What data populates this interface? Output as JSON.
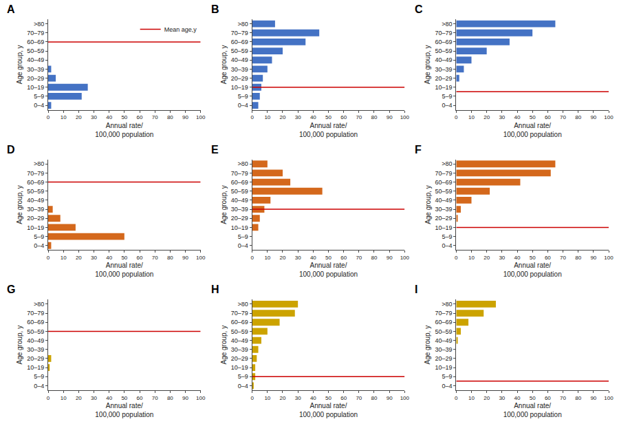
{
  "chart_data": [
    {
      "type": "bar",
      "title": "A",
      "orientation": "horizontal",
      "categories": [
        ">80",
        "70–79",
        "60–69",
        "50–59",
        "40–49",
        "30–39",
        "20–29",
        "10–19",
        "5–9",
        "0–4"
      ],
      "values": [
        0,
        0,
        0,
        0,
        0,
        2,
        5,
        26,
        22,
        2
      ],
      "color": "#4472C4",
      "mean_line": {
        "name": "Mean age,y",
        "color": "#CC0000",
        "y": 7
      },
      "legend": "upper right",
      "xlabel": "Annual rate/\n100,000 population",
      "ylabel": "Age group, y",
      "xlim": [
        0,
        100
      ],
      "xticks": [
        0,
        10,
        20,
        30,
        40,
        50,
        60,
        70,
        80,
        90,
        100
      ],
      "grid": false
    },
    {
      "type": "bar",
      "title": "B",
      "orientation": "horizontal",
      "categories": [
        ">80",
        "70–79",
        "60–69",
        "50–59",
        "40–49",
        "30–39",
        "20–29",
        "10–19",
        "5–9",
        "0–4"
      ],
      "values": [
        15,
        44,
        35,
        20,
        13,
        10,
        7,
        6,
        5,
        4
      ],
      "color": "#4472C4",
      "mean_line": {
        "color": "#CC0000",
        "y": 2
      },
      "xlabel": "Annual rate/\n100,000 population",
      "ylabel": "Age group, y",
      "xlim": [
        0,
        100
      ],
      "xticks": [
        0,
        10,
        20,
        30,
        40,
        50,
        60,
        70,
        80,
        90,
        100
      ],
      "grid": false
    },
    {
      "type": "bar",
      "title": "C",
      "orientation": "horizontal",
      "categories": [
        ">80",
        "70–79",
        "60–69",
        "50–59",
        "40–49",
        "30–39",
        "20–29",
        "10–19",
        "5–9",
        "0–4"
      ],
      "values": [
        65,
        50,
        35,
        20,
        10,
        5,
        2,
        0,
        0,
        0
      ],
      "color": "#4472C4",
      "mean_line": {
        "color": "#CC0000",
        "y": 1.5
      },
      "xlabel": "Annual rate/\n100,000 population",
      "ylabel": "Age group, y",
      "xlim": [
        0,
        100
      ],
      "xticks": [
        0,
        10,
        20,
        30,
        40,
        50,
        60,
        70,
        80,
        90,
        100
      ],
      "grid": false
    },
    {
      "type": "bar",
      "title": "D",
      "orientation": "horizontal",
      "categories": [
        ">80",
        "70–79",
        "60–69",
        "50–59",
        "40–49",
        "30–39",
        "20–29",
        "10–19",
        "5–9",
        "0–4"
      ],
      "values": [
        0,
        0,
        0,
        0,
        0,
        3,
        8,
        18,
        50,
        2
      ],
      "color": "#D4681C",
      "mean_line": {
        "color": "#CC0000",
        "y": 7
      },
      "xlabel": "Annual rate/\n100,000 population",
      "ylabel": "Age group, y",
      "xlim": [
        0,
        100
      ],
      "xticks": [
        0,
        10,
        20,
        30,
        40,
        50,
        60,
        70,
        80,
        90,
        100
      ],
      "grid": false
    },
    {
      "type": "bar",
      "title": "E",
      "orientation": "horizontal",
      "categories": [
        ">80",
        "70–79",
        "60–69",
        "50–59",
        "40–49",
        "30–39",
        "20–29",
        "10–19",
        "5–9",
        "0–4"
      ],
      "values": [
        10,
        20,
        25,
        46,
        12,
        8,
        5,
        4,
        0,
        0
      ],
      "color": "#D4681C",
      "mean_line": {
        "color": "#CC0000",
        "y": 4
      },
      "xlabel": "Annual rate/\n100,000 population",
      "ylabel": "Age group, y",
      "xlim": [
        0,
        100
      ],
      "xticks": [
        0,
        10,
        20,
        30,
        40,
        50,
        60,
        70,
        80,
        90,
        100
      ],
      "grid": false
    },
    {
      "type": "bar",
      "title": "F",
      "orientation": "horizontal",
      "categories": [
        ">80",
        "70–79",
        "60–69",
        "50–59",
        "40–49",
        "30–39",
        "20–29",
        "10–19",
        "5–9",
        "0–4"
      ],
      "values": [
        65,
        62,
        42,
        22,
        10,
        3,
        1,
        0,
        0,
        0
      ],
      "color": "#D4681C",
      "mean_line": {
        "color": "#CC0000",
        "y": 2
      },
      "xlabel": "Annual rate/\n100,000 population",
      "ylabel": "Age group, y",
      "xlim": [
        0,
        100
      ],
      "xticks": [
        0,
        10,
        20,
        30,
        40,
        50,
        60,
        70,
        80,
        90,
        100
      ],
      "grid": false
    },
    {
      "type": "bar",
      "title": "G",
      "orientation": "horizontal",
      "categories": [
        ">80",
        "70–79",
        "60–69",
        "50–59",
        "40–49",
        "30–39",
        "20–29",
        "10–19",
        "5–9",
        "0–4"
      ],
      "values": [
        0,
        0,
        0,
        0,
        0,
        0,
        2,
        1,
        0,
        0
      ],
      "color": "#CCA300",
      "mean_line": {
        "color": "#CC0000",
        "y": 6
      },
      "xlabel": "Annual rate/\n100,000 population",
      "ylabel": "Age group, y",
      "xlim": [
        0,
        100
      ],
      "xticks": [
        0,
        10,
        20,
        30,
        40,
        50,
        60,
        70,
        80,
        90,
        100
      ],
      "grid": false
    },
    {
      "type": "bar",
      "title": "H",
      "orientation": "horizontal",
      "categories": [
        ">80",
        "70–79",
        "60–69",
        "50–59",
        "40–49",
        "30–39",
        "20–29",
        "10–19",
        "5–9",
        "0–4"
      ],
      "values": [
        30,
        28,
        18,
        10,
        6,
        4,
        3,
        2,
        2,
        1
      ],
      "color": "#CCA300",
      "mean_line": {
        "color": "#CC0000",
        "y": 1
      },
      "xlabel": "Annual rate/\n100,000 population",
      "ylabel": "Age group, y",
      "xlim": [
        0,
        100
      ],
      "xticks": [
        0,
        10,
        20,
        30,
        40,
        50,
        60,
        70,
        80,
        90,
        100
      ],
      "grid": false
    },
    {
      "type": "bar",
      "title": "I",
      "orientation": "horizontal",
      "categories": [
        ">80",
        "70–79",
        "60–69",
        "50–59",
        "40–49",
        "30–39",
        "20–29",
        "10–19",
        "5–9",
        "0–4"
      ],
      "values": [
        26,
        18,
        8,
        3,
        1,
        0,
        0,
        0,
        0,
        0
      ],
      "color": "#CCA300",
      "mean_line": {
        "color": "#CC0000",
        "y": 0.5
      },
      "xlabel": "Annual rate/\n100,000 population",
      "ylabel": "Age group, y",
      "xlim": [
        0,
        100
      ],
      "xticks": [
        0,
        10,
        20,
        30,
        40,
        50,
        60,
        70,
        80,
        90,
        100
      ],
      "grid": false
    }
  ]
}
